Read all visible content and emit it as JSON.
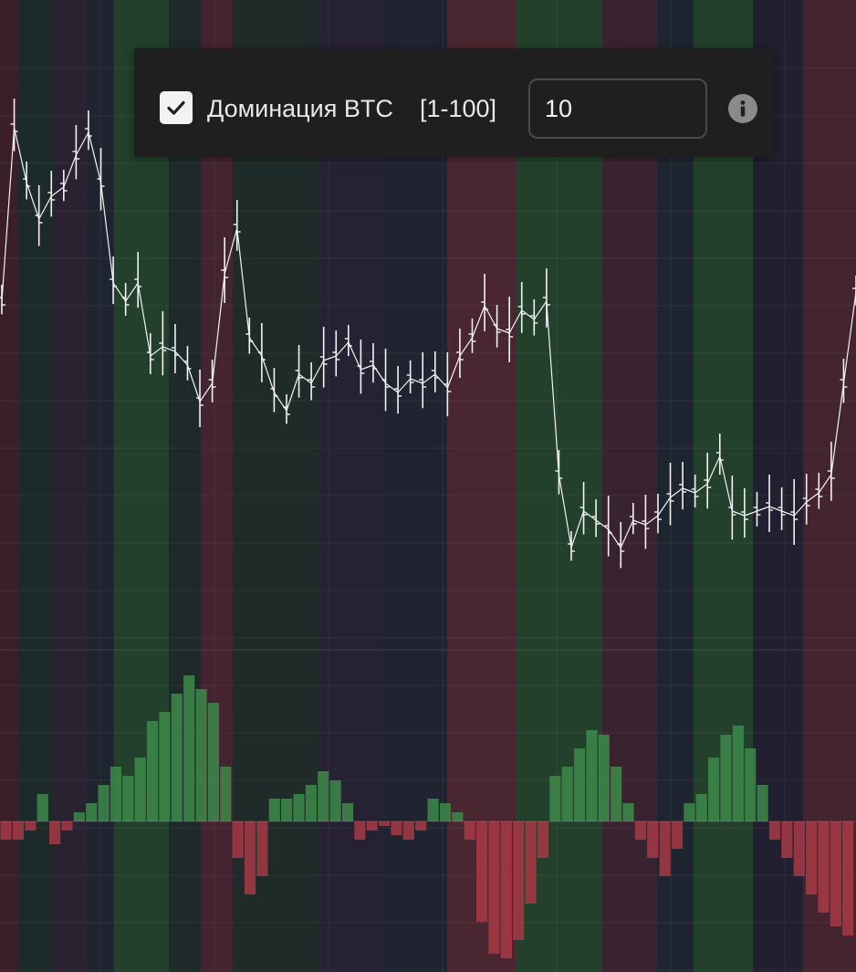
{
  "settings": {
    "checkbox_checked": true,
    "label": "Доминация BTC",
    "range": "[1-100]",
    "value": "10",
    "checkbox_icon": "checkmark-icon",
    "info_icon": "info-icon"
  },
  "colors": {
    "background": "#1b1a24",
    "bull": "#2f6a3a",
    "bear": "#7a2d36",
    "price_line": "#f2f2f2",
    "panel": "#1f1f1f"
  },
  "chart_data": {
    "type": "line",
    "title": "",
    "xlabel": "",
    "ylabel": "",
    "series": [
      {
        "values": [
          330,
          140,
          200,
          240,
          215,
          205,
          170,
          145,
          200,
          310,
          330,
          310,
          390,
          380,
          385,
          400,
          440,
          420,
          300,
          250,
          370,
          390,
          430,
          450,
          410,
          420,
          395,
          390,
          375,
          405,
          400,
          420,
          430,
          415,
          420,
          410,
          425,
          390,
          370,
          335,
          360,
          365,
          340,
          350,
          330,
          520,
          600,
          560,
          570,
          580,
          600,
          570,
          575,
          565,
          545,
          535,
          540,
          530,
          500,
          560,
          565,
          560,
          555,
          560,
          565,
          550,
          540,
          520,
          420,
          320
        ]
      }
    ],
    "oscillator": [
      -20,
      -20,
      -10,
      30,
      -25,
      -10,
      10,
      20,
      40,
      60,
      50,
      70,
      110,
      120,
      140,
      160,
      145,
      130,
      60,
      -40,
      -80,
      -60,
      25,
      25,
      30,
      40,
      55,
      45,
      20,
      -20,
      -10,
      -5,
      -15,
      -20,
      -10,
      25,
      20,
      10,
      -20,
      -110,
      -145,
      -150,
      -130,
      -90,
      -40,
      50,
      60,
      80,
      100,
      95,
      60,
      20,
      -20,
      -40,
      -60,
      -30,
      20,
      30,
      70,
      95,
      105,
      80,
      40,
      -20,
      -40,
      -60,
      -80,
      -100,
      -115,
      -125
    ]
  }
}
